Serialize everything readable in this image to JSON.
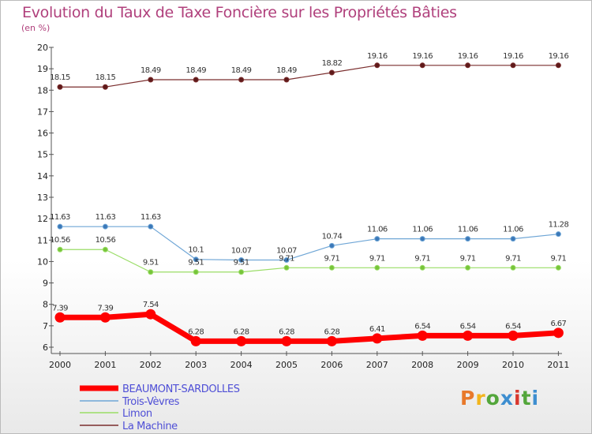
{
  "header": {
    "title": "Evolution du Taux de Taxe Foncière sur les Propriétés Bâties",
    "unit": "(en %)"
  },
  "logo": {
    "text": "Proxiti",
    "colors": [
      "#e8792b",
      "#f2b51d",
      "#53a63b",
      "#3d8ed0",
      "#d9382e",
      "#53a63b",
      "#3d8ed0"
    ]
  },
  "chart_data": {
    "type": "line",
    "title": "Evolution du Taux de Taxe Foncière sur les Propriétés Bâties",
    "ylabel": "(en %)",
    "xlabel": "",
    "x": [
      "2000",
      "2001",
      "2002",
      "2003",
      "2004",
      "2005",
      "2006",
      "2007",
      "2008",
      "2009",
      "2010",
      "2011"
    ],
    "yticks": [
      6,
      7,
      8,
      9,
      10,
      11,
      12,
      13,
      14,
      15,
      16,
      17,
      18,
      19,
      20
    ],
    "ylim": [
      6,
      20
    ],
    "grid": false,
    "legend_position": "bottom-left",
    "series": [
      {
        "name": "BEAUMONT-SARDOLLES",
        "color": "#ff0000",
        "legend_color": "#4f4fd6",
        "labels": [
          "7.39",
          "7.39",
          "7.54",
          "6.28",
          "6.28",
          "6.28",
          "6.28",
          "6.41",
          "6.54",
          "6.54",
          "6.54",
          "6.67"
        ],
        "values": [
          7.39,
          7.39,
          7.54,
          6.28,
          6.28,
          6.28,
          6.28,
          6.41,
          6.54,
          6.54,
          6.54,
          6.67
        ]
      },
      {
        "name": "Trois-Vèvres",
        "color": "#6fa6d6",
        "legend_color": "#4f4fd6",
        "labels": [
          "11.63",
          "11.63",
          "11.63",
          "10.1",
          "10.07",
          "10.07",
          "10.74",
          "11.06",
          "11.06",
          "11.06",
          "11.06",
          "11.28"
        ],
        "values": [
          11.63,
          11.63,
          11.63,
          10.1,
          10.07,
          10.07,
          10.74,
          11.06,
          11.06,
          11.06,
          11.06,
          11.28
        ]
      },
      {
        "name": "Limon",
        "color": "#99dd66",
        "legend_color": "#4f4fd6",
        "labels": [
          "10.56",
          "10.56",
          "9.51",
          "9.51",
          "9.51",
          "9.71",
          "9.71",
          "9.71",
          "9.71",
          "9.71",
          "9.71",
          "9.71"
        ],
        "values": [
          10.56,
          10.56,
          9.51,
          9.51,
          9.51,
          9.71,
          9.71,
          9.71,
          9.71,
          9.71,
          9.71,
          9.71
        ]
      },
      {
        "name": "La Machine",
        "color": "#7a2d2d",
        "legend_color": "#4f4fd6",
        "labels": [
          "18.15",
          "18.15",
          "18.49",
          "18.49",
          "18.49",
          "18.49",
          "18.82",
          "19.16",
          "19.16",
          "19.16",
          "19.16",
          "19.16"
        ],
        "values": [
          18.15,
          18.15,
          18.49,
          18.49,
          18.49,
          18.49,
          18.82,
          19.16,
          19.16,
          19.16,
          19.16,
          19.16
        ]
      }
    ]
  }
}
